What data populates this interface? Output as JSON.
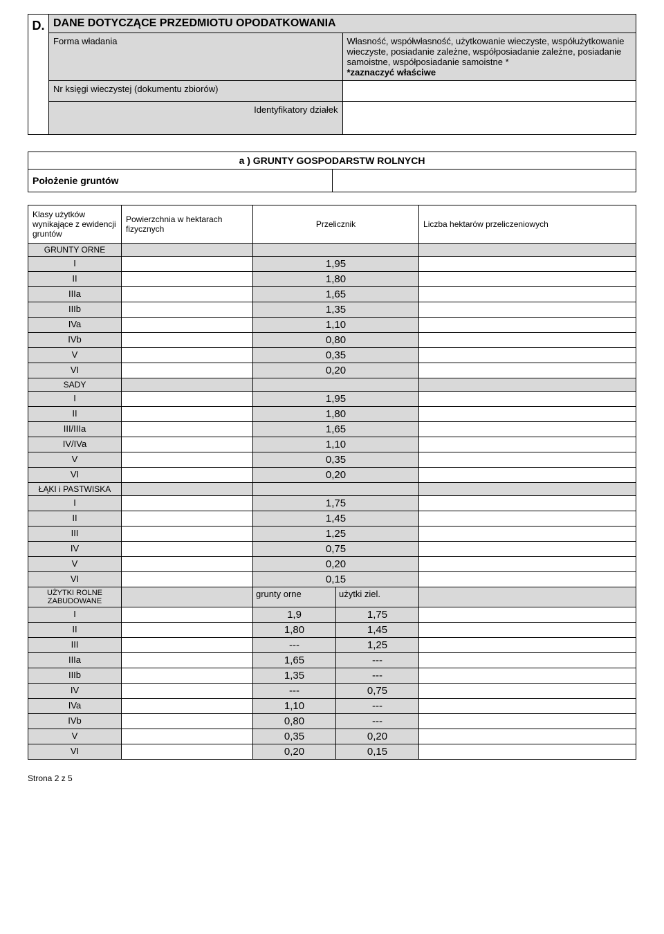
{
  "sectionD": {
    "letter": "D.",
    "title": "DANE DOTYCZĄCE PRZEDMIOTU OPODATKOWANIA",
    "rows": [
      {
        "label": "Forma władania",
        "desc": "Własność, współwłasność, użytkowanie wieczyste, współużytkowanie wieczyste, posiadanie zależne, współposiadanie zależne, posiadanie samoistne, współposiadanie samoistne *",
        "note": "*zaznaczyć właściwe"
      },
      {
        "label": "Nr księgi wieczystej (dokumentu zbiorów)"
      },
      {
        "label": "Identyfikatory działek"
      }
    ]
  },
  "sectionA": {
    "title": "a ) GRUNTY GOSPODARSTW ROLNYCH",
    "poloz": "Położenie gruntów"
  },
  "tableHeaders": {
    "col1": "Klasy użytków wynikające z ewidencji gruntów",
    "col2": "Powierzchnia w hektarach fizycznych",
    "col3": "Przelicznik",
    "col4": "Liczba hektarów przeliczeniowych"
  },
  "categories": {
    "orne": "GRUNTY  ORNE",
    "sady": "SADY",
    "laki": "ŁĄKI i PASTWISKA",
    "zabud": "UŻYTKI ROLNE ZABUDOWANE",
    "grunty_orne_sub": "grunty orne",
    "uzytki_ziel_sub": "użytki ziel."
  },
  "rows_orne": [
    {
      "k": "I",
      "p": "1,95"
    },
    {
      "k": "II",
      "p": "1,80"
    },
    {
      "k": "IIIa",
      "p": "1,65"
    },
    {
      "k": "IIIb",
      "p": "1,35"
    },
    {
      "k": "IVa",
      "p": "1,10"
    },
    {
      "k": "IVb",
      "p": "0,80"
    },
    {
      "k": "V",
      "p": "0,35"
    },
    {
      "k": "VI",
      "p": "0,20"
    }
  ],
  "rows_sady": [
    {
      "k": "I",
      "p": "1,95"
    },
    {
      "k": "II",
      "p": "1,80"
    },
    {
      "k": "III/IIIa",
      "p": "1,65"
    },
    {
      "k": "IV/IVa",
      "p": "1,10"
    },
    {
      "k": "V",
      "p": "0,35"
    },
    {
      "k": "VI",
      "p": "0,20"
    }
  ],
  "rows_laki": [
    {
      "k": "I",
      "p": "1,75"
    },
    {
      "k": "II",
      "p": "1,45"
    },
    {
      "k": "III",
      "p": "1,25"
    },
    {
      "k": "IV",
      "p": "0,75"
    },
    {
      "k": "V",
      "p": "0,20"
    },
    {
      "k": "VI",
      "p": "0,15"
    }
  ],
  "rows_zabud": [
    {
      "k": "I",
      "a": "1,9",
      "b": "1,75"
    },
    {
      "k": "II",
      "a": "1,80",
      "b": "1,45"
    },
    {
      "k": "III",
      "a": "---",
      "b": "1,25"
    },
    {
      "k": "IIIa",
      "a": "1,65",
      "b": "---"
    },
    {
      "k": "IIIb",
      "a": "1,35",
      "b": "---"
    },
    {
      "k": "IV",
      "a": "---",
      "b": "0,75"
    },
    {
      "k": "IVa",
      "a": "1,10",
      "b": "---"
    },
    {
      "k": "IVb",
      "a": "0,80",
      "b": "---"
    },
    {
      "k": "V",
      "a": "0,35",
      "b": "0,20"
    },
    {
      "k": "VI",
      "a": "0,20",
      "b": "0,15"
    }
  ],
  "footer": "Strona 2 z 5",
  "colors": {
    "grey": "#d9d9d9",
    "border": "#000000",
    "bg": "#ffffff"
  },
  "col_widths": {
    "klasa": 135,
    "phys": 190,
    "prze": 240,
    "licz": 300
  }
}
